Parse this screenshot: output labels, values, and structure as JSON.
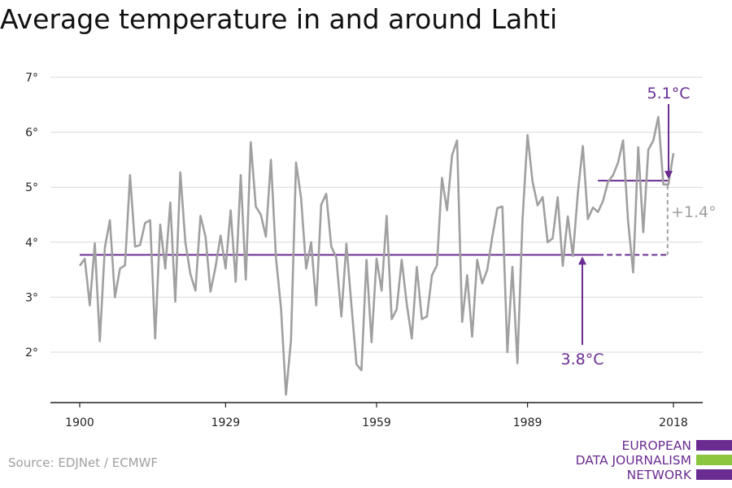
{
  "title": "Average temperature in and around Lahti",
  "source": "Source: EDJNet / ECMWF",
  "logo": {
    "lines": [
      "EUROPEAN",
      "DATA JOURNALISM",
      "NETWORK"
    ],
    "colors": [
      "#6b2c91",
      "#8cc63f",
      "#6b2c91"
    ]
  },
  "colors": {
    "series": "#a0a0a0",
    "accent": "#6b2c91",
    "diff": "#a0a0a0"
  },
  "chart_data": {
    "type": "line",
    "title": "Average temperature in and around Lahti",
    "xlabel": "",
    "ylabel": "",
    "xlim": [
      1900,
      2018
    ],
    "ylim": [
      1.2,
      7
    ],
    "grid": true,
    "x_ticks": [
      1900,
      1929,
      1959,
      1989,
      2018
    ],
    "x_tick_labels": [
      "1900",
      "1929",
      "1959",
      "1989",
      "2018"
    ],
    "y_ticks": [
      2,
      3,
      4,
      5,
      6,
      7
    ],
    "y_tick_labels": [
      "2°",
      "3°",
      "4°",
      "5°",
      "6°",
      "7°"
    ],
    "series": [
      {
        "x_start": 1900,
        "values": [
          3.57,
          3.7,
          2.85,
          3.98,
          2.2,
          3.9,
          4.4,
          3.0,
          3.52,
          3.58,
          5.22,
          3.92,
          3.95,
          4.35,
          4.4,
          2.25,
          4.32,
          3.52,
          4.72,
          2.92,
          5.27,
          4.0,
          3.42,
          3.12,
          4.48,
          4.1,
          3.1,
          3.55,
          4.12,
          3.52,
          4.58,
          3.28,
          5.22,
          3.32,
          5.82,
          4.65,
          4.5,
          4.1,
          5.5,
          3.72,
          2.8,
          1.23,
          2.22,
          5.45,
          4.8,
          3.52,
          4.0,
          2.85,
          4.68,
          4.88,
          3.92,
          3.72,
          2.65,
          3.97,
          2.85,
          1.78,
          1.67,
          3.68,
          2.18,
          3.7,
          3.12,
          4.48,
          2.6,
          2.78,
          3.68,
          2.88,
          2.25,
          3.55,
          2.6,
          2.65,
          3.4,
          3.58,
          5.17,
          4.58,
          5.58,
          5.85,
          2.55,
          3.4,
          2.28,
          3.68,
          3.25,
          3.5,
          4.1,
          4.62,
          4.65,
          2.0,
          3.55,
          1.8,
          4.4,
          5.95,
          5.1,
          4.67,
          4.82,
          4.0,
          4.07,
          4.82,
          3.57,
          4.47,
          3.75,
          4.9,
          5.75,
          4.42,
          4.63,
          4.55,
          4.75,
          5.1,
          5.22,
          5.45,
          5.85,
          4.37,
          3.45,
          5.73,
          4.18,
          5.68,
          5.85,
          6.28,
          5.05,
          5.05,
          5.62
        ]
      }
    ],
    "annotations": [
      {
        "label": "3.8°C",
        "kind": "baseline",
        "value": 3.77,
        "x_from": 1900,
        "x_to": 2018
      },
      {
        "label": "5.1°C",
        "kind": "recent",
        "value": 5.12,
        "x_from": 2003,
        "x_to": 2017
      },
      {
        "label": "+1.4°",
        "kind": "difference",
        "x": 2017
      }
    ]
  }
}
